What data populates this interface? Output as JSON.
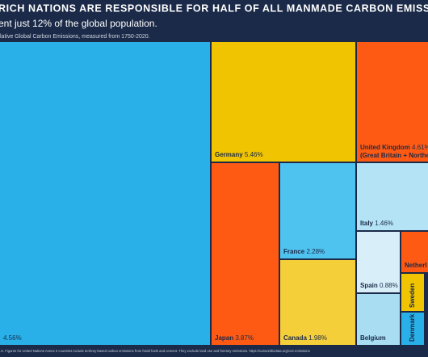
{
  "chart_data": {
    "type": "treemap",
    "title": "RICH NATIONS ARE RESPONSIBLE FOR HALF OF ALL MANMADE CARBON EMISSIONS ON REC",
    "subtitle": "ent just 12% of the global population.",
    "caption": "lative Global Carbon Emissions, measured from 1750-2020.",
    "footnote": ".S. Figures for United Nations Annex II countries include territory-based carbon emissions from fossil fuels and cement. They exclude land use and forestry emissions. https://ourworldindata.org/co2-emissions",
    "categories": [
      null,
      "Germany",
      "United Kingdom",
      "Japan",
      "France",
      "Canada",
      "Italy",
      "Spain",
      "Belgium",
      "Netherl",
      "Sweden",
      "Denmark"
    ],
    "category_notes": [
      null,
      null,
      "(Great Britain + Northe",
      null,
      null,
      null,
      null,
      null,
      null,
      null,
      null,
      null
    ],
    "values": [
      4.56,
      5.46,
      4.61,
      3.87,
      2.28,
      1.98,
      1.46,
      0.88,
      null,
      null,
      null,
      null
    ],
    "value_labels": [
      "4.56%",
      "5.46%",
      "4.61%",
      "3.87%",
      "2.28%",
      "1.98%",
      "1.46%",
      "0.88%",
      null,
      null,
      null,
      null
    ],
    "colors": [
      "#29b0e8",
      "#f0c400",
      "#ff5a14",
      "#ff5a14",
      "#4fc3f0",
      "#f5cf3a",
      "#b3e3f5",
      "#d8eff9",
      "#a8ddf2",
      "#ff5a14",
      "#f0c400",
      "#29b0e8"
    ]
  }
}
